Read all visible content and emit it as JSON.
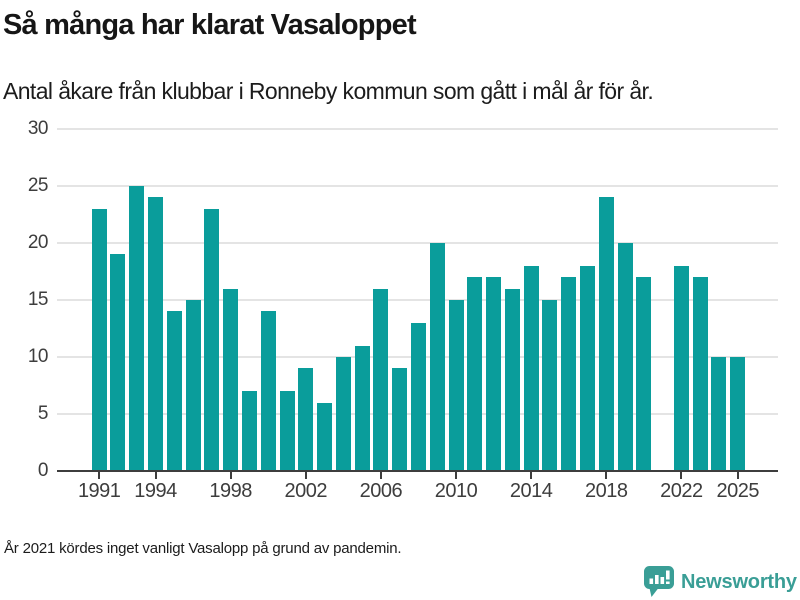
{
  "header": {
    "title": "Så många har klarat Vasaloppet",
    "subtitle": "Antal åkare från klubbar i Ronneby kommun som gått i mål år för år."
  },
  "chart_data": {
    "type": "bar",
    "title": "Så många har klarat Vasaloppet",
    "subtitle": "Antal åkare från klubbar i Ronneby kommun som gått i mål år för år.",
    "xlabel": "",
    "ylabel": "",
    "x": [
      1991,
      1992,
      1993,
      1994,
      1995,
      1996,
      1997,
      1998,
      1999,
      2000,
      2001,
      2002,
      2003,
      2004,
      2005,
      2006,
      2007,
      2008,
      2009,
      2010,
      2011,
      2012,
      2013,
      2014,
      2015,
      2016,
      2017,
      2018,
      2019,
      2020,
      2021,
      2022,
      2023,
      2024,
      2025
    ],
    "values": [
      23,
      19,
      25,
      24,
      14,
      15,
      23,
      16,
      7,
      14,
      7,
      9,
      6,
      10,
      11,
      16,
      9,
      13,
      20,
      15,
      17,
      17,
      16,
      18,
      15,
      17,
      18,
      24,
      20,
      17,
      null,
      18,
      17,
      10,
      10
    ],
    "missing_years": [
      2021
    ],
    "ylim": [
      0,
      30
    ],
    "yticks": [
      0,
      5,
      10,
      15,
      20,
      25,
      30
    ],
    "xticks": [
      1991,
      1994,
      1998,
      2002,
      2006,
      2010,
      2014,
      2018,
      2022,
      2025
    ],
    "grid": "horizontal",
    "legend": "none",
    "colors": {
      "bar": "#0a9d9b",
      "gridline": "#e4e4e4",
      "axis": "#3d3d3d",
      "tick_label": "#3d3d3d"
    }
  },
  "footer": {
    "note": "År 2021 kördes inget vanligt Vasalopp på grund av pandemin.",
    "logo_text": "Newsworthy",
    "logo_color": "#3a9e96"
  }
}
